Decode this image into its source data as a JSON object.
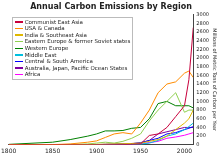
{
  "chart_data": {
    "type": "line",
    "title": "Annual Carbon Emissions by Region",
    "y_label": "Millions of Metric Tons of Carbon per Year",
    "x": [
      1800,
      1850,
      1870,
      1890,
      1900,
      1910,
      1920,
      1930,
      1940,
      1950,
      1960,
      1970,
      1980,
      1990,
      2000,
      2005,
      2010
    ],
    "series": [
      {
        "name": "Communist East Asia",
        "color": "#c8003c",
        "values": [
          0,
          0,
          0,
          0,
          0,
          0,
          2,
          5,
          10,
          20,
          215,
          250,
          400,
          650,
          900,
          1500,
          2700
        ]
      },
      {
        "name": "USA & Canada",
        "color": "#ff8c00",
        "values": [
          0,
          5,
          20,
          60,
          90,
          170,
          250,
          280,
          250,
          500,
          800,
          1200,
          1400,
          1450,
          1650,
          1700,
          1550
        ]
      },
      {
        "name": "India & Southeast Asia",
        "color": "#e0b800",
        "values": [
          0,
          0,
          1,
          5,
          10,
          15,
          20,
          25,
          30,
          40,
          80,
          120,
          200,
          350,
          500,
          600,
          800
        ]
      },
      {
        "name": "Eastern Europe & former Soviet states",
        "color": "#90d050",
        "values": [
          0,
          2,
          10,
          20,
          40,
          60,
          40,
          80,
          150,
          250,
          550,
          800,
          1000,
          1200,
          750,
          800,
          800
        ]
      },
      {
        "name": "Western Europe",
        "color": "#008000",
        "values": [
          10,
          60,
          120,
          200,
          250,
          320,
          320,
          330,
          380,
          400,
          600,
          950,
          1000,
          900,
          900,
          900,
          850
        ]
      },
      {
        "name": "Middle East",
        "color": "#00c0e0",
        "values": [
          0,
          0,
          0,
          0,
          0,
          0,
          2,
          5,
          5,
          15,
          40,
          100,
          200,
          250,
          350,
          420,
          500
        ]
      },
      {
        "name": "Central & South America",
        "color": "#0000ff",
        "values": [
          0,
          0,
          1,
          3,
          5,
          10,
          15,
          20,
          25,
          50,
          100,
          150,
          250,
          280,
          350,
          380,
          420
        ]
      },
      {
        "name": "Australia, Japan, Pacific Ocean States",
        "color": "#8000a0",
        "values": [
          0,
          0,
          1,
          3,
          5,
          10,
          15,
          20,
          30,
          40,
          100,
          250,
          300,
          350,
          400,
          400,
          400
        ]
      },
      {
        "name": "Africa",
        "color": "#ff00ff",
        "values": [
          0,
          0,
          0,
          1,
          2,
          5,
          8,
          10,
          15,
          25,
          50,
          80,
          150,
          180,
          220,
          250,
          280
        ]
      }
    ],
    "xlim": [
      1800,
      2010
    ],
    "xticks": [
      1800,
      1850,
      1900,
      1950,
      2000
    ],
    "ylim": [
      0,
      3000
    ],
    "yticks": [
      0,
      200,
      400,
      600,
      800,
      1000,
      1200,
      1400,
      1600,
      1800,
      2000,
      2200,
      2400,
      2600,
      2800,
      3000
    ],
    "grid": false,
    "legend": "upper left"
  }
}
